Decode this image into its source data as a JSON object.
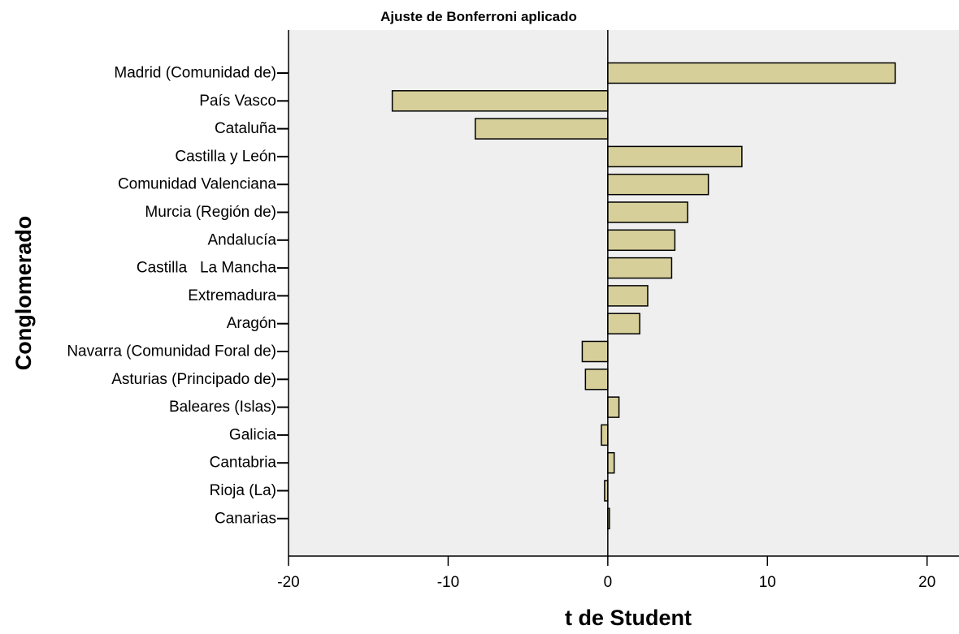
{
  "chart_data": {
    "type": "bar",
    "orientation": "horizontal",
    "title": "Ajuste de Bonferroni aplicado",
    "xlabel": "t de Student",
    "ylabel": "Conglomerado",
    "xlim": [
      -20,
      22
    ],
    "xticks": [
      -20,
      -10,
      0,
      10,
      20
    ],
    "xtick_labels": [
      "-20",
      "-10",
      "0",
      "10",
      "20"
    ],
    "grid": false,
    "legend": "none",
    "colors": {
      "plot_background": "#efefef",
      "bar_fill": "#d6cf9a",
      "bar_stroke": "#000000",
      "axis": "#000000"
    },
    "categories": [
      "Madrid (Comunidad de)",
      "País Vasco",
      "Cataluña",
      "Castilla y León",
      "Comunidad Valenciana",
      "Murcia (Región de)",
      "Andalucía",
      "Castilla   La Mancha",
      "Extremadura",
      "Aragón",
      "Navarra (Comunidad Foral de)",
      "Asturias (Principado de)",
      "Baleares (Islas)",
      "Galicia",
      "Cantabria",
      "Rioja (La)",
      "Canarias"
    ],
    "values": [
      18.0,
      -13.5,
      -8.3,
      8.4,
      6.3,
      5.0,
      4.2,
      4.0,
      2.5,
      2.0,
      -1.6,
      -1.4,
      0.7,
      -0.4,
      0.4,
      -0.2,
      0.1
    ]
  }
}
